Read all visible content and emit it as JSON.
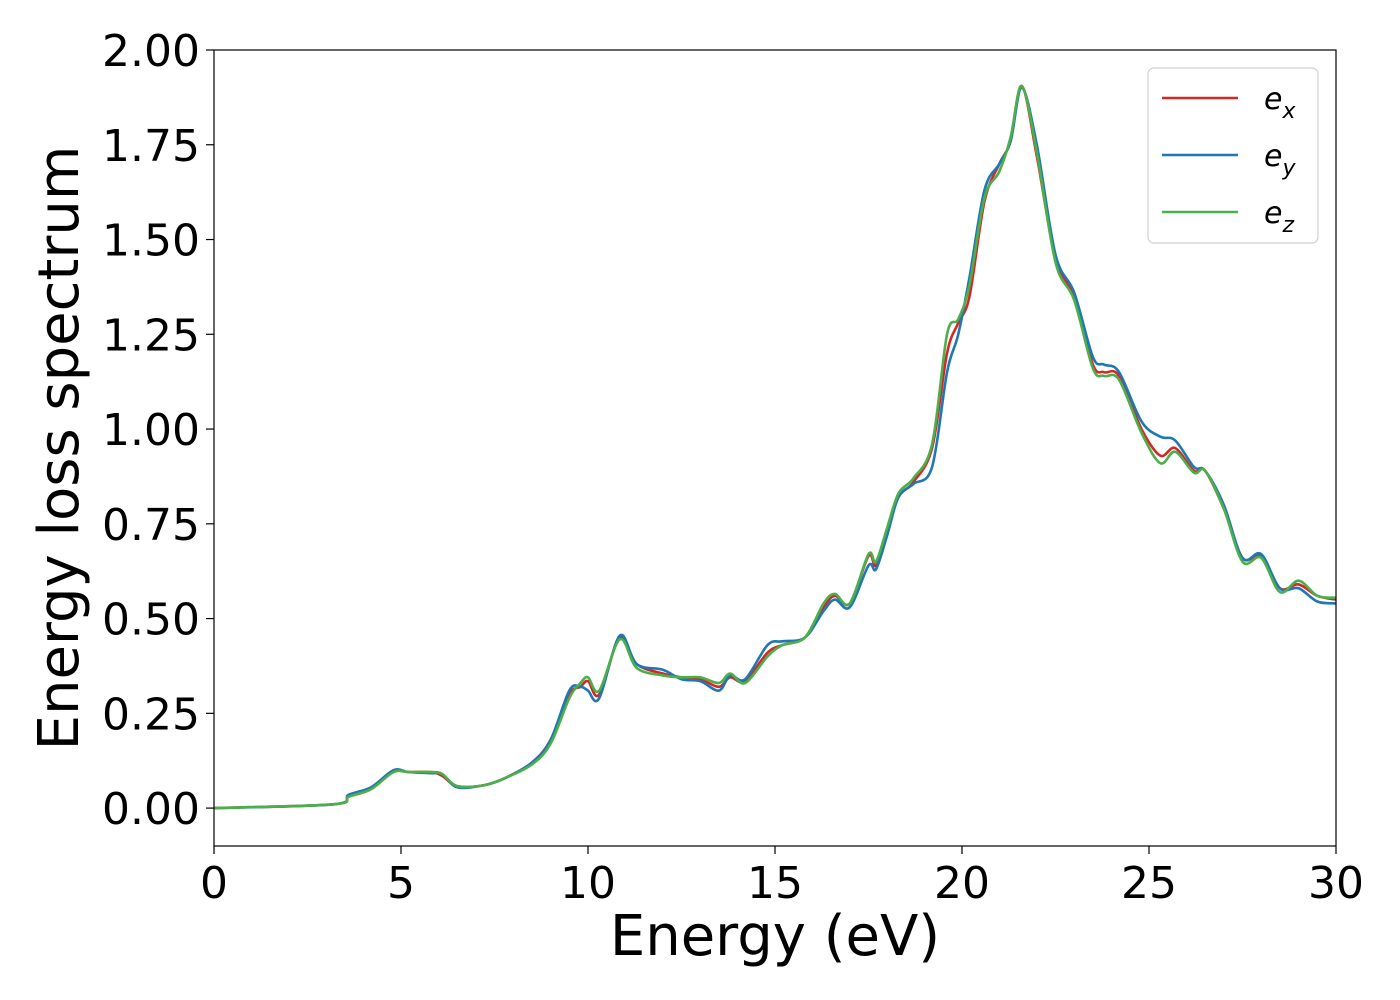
{
  "chart_data": {
    "type": "line",
    "title": "",
    "xlabel": "Energy (eV)",
    "ylabel": "Energy loss spectrum",
    "xlim": [
      0,
      30
    ],
    "ylim": [
      -0.1,
      2.0
    ],
    "xticks": [
      0,
      5,
      10,
      15,
      20,
      25,
      30
    ],
    "yticks": [
      0.0,
      0.25,
      0.5,
      0.75,
      1.0,
      1.25,
      1.5,
      1.75,
      2.0
    ],
    "xtick_labels": [
      "0",
      "5",
      "10",
      "15",
      "20",
      "25",
      "30"
    ],
    "ytick_labels": [
      "0.00",
      "0.25",
      "0.50",
      "0.75",
      "1.00",
      "1.25",
      "1.50",
      "1.75",
      "2.00"
    ],
    "grid": false,
    "legend_position": "top-right",
    "series": [
      {
        "name": "e_x",
        "label_base": "e",
        "label_sub": "x",
        "color": "#d62728",
        "x": [
          0,
          3.2,
          3.6,
          4.2,
          4.8,
          5.2,
          5.8,
          6.1,
          6.5,
          7.2,
          7.8,
          8.5,
          9.0,
          9.5,
          9.8,
          10.0,
          10.3,
          10.85,
          11.3,
          12.0,
          12.5,
          13.0,
          13.5,
          13.8,
          14.2,
          14.8,
          15.2,
          15.8,
          16.3,
          16.6,
          17.0,
          17.5,
          17.7,
          18.0,
          18.3,
          18.7,
          19.2,
          19.6,
          19.9,
          20.2,
          20.6,
          21.0,
          21.3,
          21.6,
          22.0,
          22.5,
          23.0,
          23.5,
          23.8,
          24.2,
          24.8,
          25.3,
          25.7,
          26.2,
          26.5,
          27.0,
          27.5,
          28.0,
          28.5,
          29.0,
          29.5,
          30.0
        ],
        "y": [
          0.0,
          0.01,
          0.03,
          0.05,
          0.098,
          0.095,
          0.095,
          0.085,
          0.058,
          0.06,
          0.08,
          0.12,
          0.18,
          0.3,
          0.32,
          0.335,
          0.3,
          0.45,
          0.38,
          0.355,
          0.345,
          0.34,
          0.32,
          0.345,
          0.335,
          0.41,
          0.43,
          0.45,
          0.53,
          0.56,
          0.54,
          0.665,
          0.64,
          0.73,
          0.82,
          0.86,
          0.95,
          1.2,
          1.28,
          1.35,
          1.6,
          1.7,
          1.76,
          1.905,
          1.72,
          1.45,
          1.35,
          1.17,
          1.15,
          1.14,
          1.0,
          0.93,
          0.95,
          0.89,
          0.89,
          0.79,
          0.66,
          0.665,
          0.58,
          0.59,
          0.56,
          0.55
        ]
      },
      {
        "name": "e_y",
        "label_base": "e",
        "label_sub": "y",
        "color": "#1f77b4",
        "x": [
          0,
          3.2,
          3.6,
          4.2,
          4.8,
          5.2,
          5.8,
          6.1,
          6.5,
          7.2,
          7.8,
          8.5,
          9.0,
          9.5,
          9.8,
          10.0,
          10.3,
          10.85,
          11.3,
          12.0,
          12.5,
          13.0,
          13.5,
          13.8,
          14.2,
          14.8,
          15.2,
          15.8,
          16.3,
          16.6,
          17.0,
          17.5,
          17.7,
          18.0,
          18.3,
          18.7,
          19.2,
          19.6,
          19.9,
          20.2,
          20.6,
          21.0,
          21.3,
          21.6,
          22.0,
          22.5,
          23.0,
          23.5,
          23.8,
          24.2,
          24.8,
          25.3,
          25.7,
          26.2,
          26.5,
          27.0,
          27.5,
          28.0,
          28.5,
          29.0,
          29.5,
          30.0
        ],
        "y": [
          0.0,
          0.01,
          0.035,
          0.055,
          0.1,
          0.095,
          0.092,
          0.09,
          0.055,
          0.06,
          0.08,
          0.12,
          0.18,
          0.31,
          0.32,
          0.31,
          0.29,
          0.455,
          0.38,
          0.365,
          0.34,
          0.335,
          0.31,
          0.35,
          0.34,
          0.43,
          0.44,
          0.45,
          0.52,
          0.55,
          0.53,
          0.64,
          0.63,
          0.72,
          0.82,
          0.855,
          0.9,
          1.15,
          1.25,
          1.4,
          1.63,
          1.7,
          1.76,
          1.9,
          1.75,
          1.46,
          1.36,
          1.19,
          1.17,
          1.15,
          1.02,
          0.98,
          0.97,
          0.9,
          0.89,
          0.8,
          0.66,
          0.67,
          0.58,
          0.58,
          0.545,
          0.54
        ]
      },
      {
        "name": "e_z",
        "label_base": "e",
        "label_sub": "z",
        "color": "#4daf4a",
        "x": [
          0,
          3.2,
          3.6,
          4.2,
          4.8,
          5.2,
          5.8,
          6.1,
          6.5,
          7.2,
          7.8,
          8.5,
          9.0,
          9.5,
          9.8,
          10.0,
          10.3,
          10.85,
          11.3,
          12.0,
          12.5,
          13.0,
          13.5,
          13.8,
          14.2,
          14.8,
          15.2,
          15.8,
          16.3,
          16.6,
          17.0,
          17.5,
          17.7,
          18.0,
          18.3,
          18.7,
          19.2,
          19.6,
          19.9,
          20.2,
          20.6,
          21.0,
          21.3,
          21.6,
          22.0,
          22.5,
          23.0,
          23.5,
          23.8,
          24.2,
          24.8,
          25.3,
          25.7,
          26.2,
          26.5,
          27.0,
          27.5,
          28.0,
          28.5,
          29.0,
          29.5,
          30.0
        ],
        "y": [
          0.0,
          0.01,
          0.03,
          0.05,
          0.095,
          0.095,
          0.095,
          0.09,
          0.058,
          0.06,
          0.08,
          0.115,
          0.17,
          0.29,
          0.33,
          0.345,
          0.31,
          0.445,
          0.37,
          0.35,
          0.345,
          0.345,
          0.33,
          0.355,
          0.33,
          0.4,
          0.43,
          0.45,
          0.54,
          0.565,
          0.54,
          0.67,
          0.65,
          0.74,
          0.83,
          0.87,
          0.96,
          1.25,
          1.29,
          1.38,
          1.61,
          1.68,
          1.77,
          1.905,
          1.73,
          1.44,
          1.34,
          1.16,
          1.14,
          1.13,
          0.99,
          0.91,
          0.94,
          0.885,
          0.89,
          0.79,
          0.65,
          0.66,
          0.57,
          0.6,
          0.56,
          0.555
        ]
      }
    ]
  }
}
